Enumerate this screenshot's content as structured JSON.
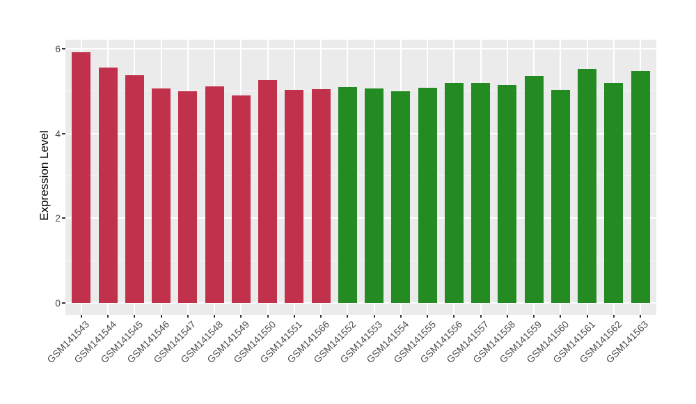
{
  "chart_data": {
    "type": "bar",
    "title": "",
    "xlabel": "",
    "ylabel": "Expression Level",
    "ylim": [
      -0.3,
      6.21
    ],
    "yticks": [
      0,
      2,
      4,
      6
    ],
    "yticks_minor": [
      1,
      3,
      5
    ],
    "grid": true,
    "legend_position": "none",
    "panel_background": "#EBEBEB",
    "gridline_color": "#FFFFFF",
    "categories": [
      "GSM141543",
      "GSM141544",
      "GSM141545",
      "GSM141546",
      "GSM141547",
      "GSM141548",
      "GSM141549",
      "GSM141550",
      "GSM141551",
      "GSM141566",
      "GSM141552",
      "GSM141553",
      "GSM141554",
      "GSM141555",
      "GSM141556",
      "GSM141557",
      "GSM141558",
      "GSM141559",
      "GSM141560",
      "GSM141561",
      "GSM141562",
      "GSM141563"
    ],
    "values": [
      5.92,
      5.56,
      5.38,
      5.06,
      5.0,
      5.11,
      4.9,
      5.26,
      5.03,
      5.04,
      5.1,
      5.07,
      5.0,
      5.08,
      5.2,
      5.19,
      5.15,
      5.36,
      5.03,
      5.52,
      5.19,
      5.48
    ],
    "groups": [
      "red",
      "red",
      "red",
      "red",
      "red",
      "red",
      "red",
      "red",
      "red",
      "red",
      "green",
      "green",
      "green",
      "green",
      "green",
      "green",
      "green",
      "green",
      "green",
      "green",
      "green",
      "green"
    ],
    "group_colors": {
      "red": "#C2314B",
      "green": "#238B22"
    }
  }
}
